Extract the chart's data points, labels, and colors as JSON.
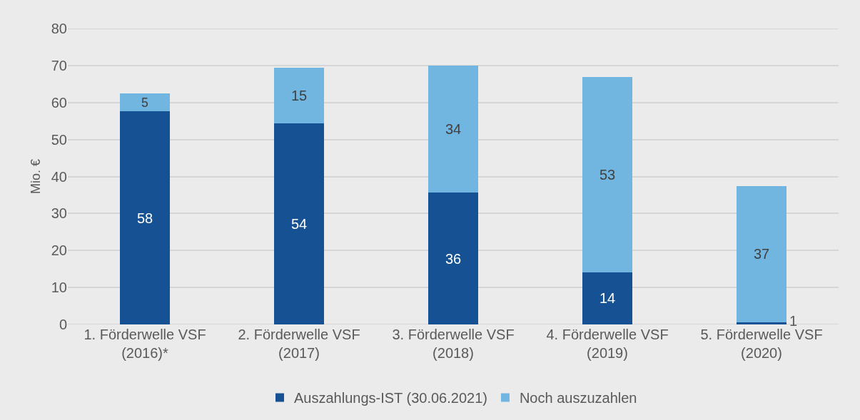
{
  "chart_data": {
    "type": "bar",
    "stacked": true,
    "ylabel": "Mio. €",
    "categories": [
      "1. Förderwelle VSF (2016)*",
      "2. Förderwelle VSF (2017)",
      "3. Förderwelle VSF (2018)",
      "4. Förderwelle VSF (2019)",
      "5. Förderwelle VSF (2020)"
    ],
    "series": [
      {
        "name": "Auszahlungs-IST (30.06.2021)",
        "color": "#165193",
        "values": [
          57.6,
          54.3,
          35.6,
          14.1,
          0.6
        ],
        "value_labels": [
          "58",
          "54",
          "36",
          "14",
          "1"
        ]
      },
      {
        "name": "Noch auszuzahlen",
        "color": "#71b6e1",
        "values": [
          4.9,
          15.1,
          34.4,
          52.7,
          36.8
        ],
        "value_labels": [
          "5",
          "15",
          "34",
          "53",
          "37"
        ]
      }
    ],
    "ylim": [
      0,
      80
    ],
    "yticks": [
      0,
      10,
      20,
      30,
      40,
      50,
      60,
      70,
      80
    ],
    "grid": "y",
    "legend": "bottom"
  }
}
